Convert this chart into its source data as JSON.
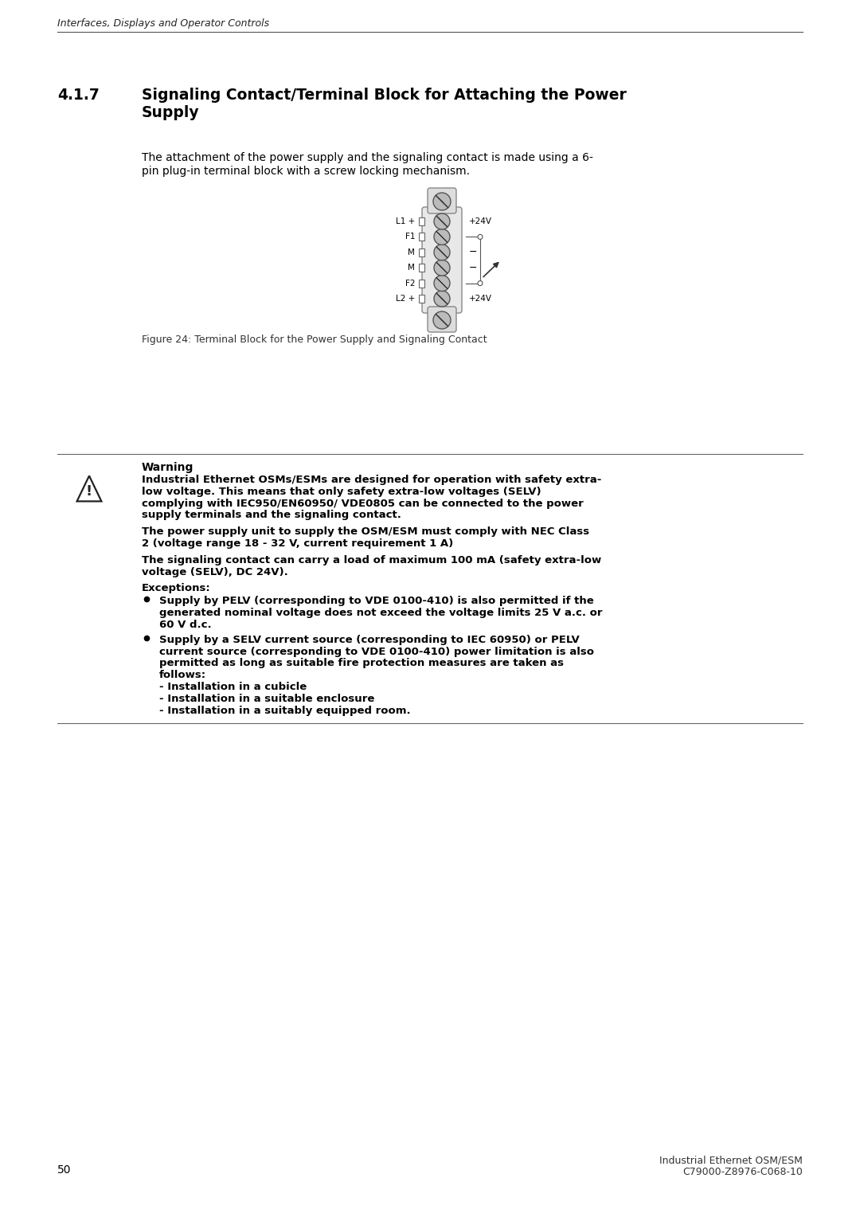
{
  "bg_color": "#ffffff",
  "header_text": "Interfaces, Displays and Operator Controls",
  "section_num": "4.1.7",
  "section_title_line1": "Signaling Contact/Terminal Block for Attaching the Power",
  "section_title_line2": "Supply",
  "body_line1": "The attachment of the power supply and the signaling contact is made using a 6-",
  "body_line2": "pin plug-in terminal block with a screw locking mechanism.",
  "figure_caption": "Figure 24: Terminal Block for the Power Supply and Signaling Contact",
  "warning_title": "Warning",
  "warn1_lines": [
    "Industrial Ethernet OSMs/ESMs are designed for operation with safety extra-",
    "low voltage. This means that only safety extra-low voltages (SELV)",
    "complying with IEC950/EN60950/ VDE0805 can be connected to the power",
    "supply terminals and the signaling contact."
  ],
  "warn2_lines": [
    "The power supply unit to supply the OSM/ESM must comply with NEC Class",
    "2 (voltage range 18 - 32 V, current requirement 1 A)"
  ],
  "warn3_lines": [
    "The signaling contact can carry a load of maximum 100 mA (safety extra-low",
    "voltage (SELV), DC 24V)."
  ],
  "exceptions_label": "Exceptions:",
  "bullet1_lines": [
    "Supply by PELV (corresponding to VDE 0100-410) is also permitted if the",
    "generated nominal voltage does not exceed the voltage limits 25 V a.c. or",
    "60 V d.c."
  ],
  "bullet2_lines": [
    "Supply by a SELV current source (corresponding to IEC 60950) or PELV",
    "current source (corresponding to VDE 0100-410) power limitation is also",
    "permitted as long as suitable fire protection measures are taken as",
    "follows:",
    "- Installation in a cubicle",
    "- Installation in a suitable enclosure",
    "- Installation in a suitably equipped room."
  ],
  "footer_page": "50",
  "footer_title": "Industrial Ethernet OSM/ESM",
  "footer_code": "C79000-Z8976-C068-10",
  "term_labels": [
    "L1 +",
    "F1",
    "M",
    "M",
    "F2",
    "L2 +"
  ],
  "term_right": [
    "+24V",
    "o",
    "-",
    "-",
    "o",
    "+24V"
  ]
}
